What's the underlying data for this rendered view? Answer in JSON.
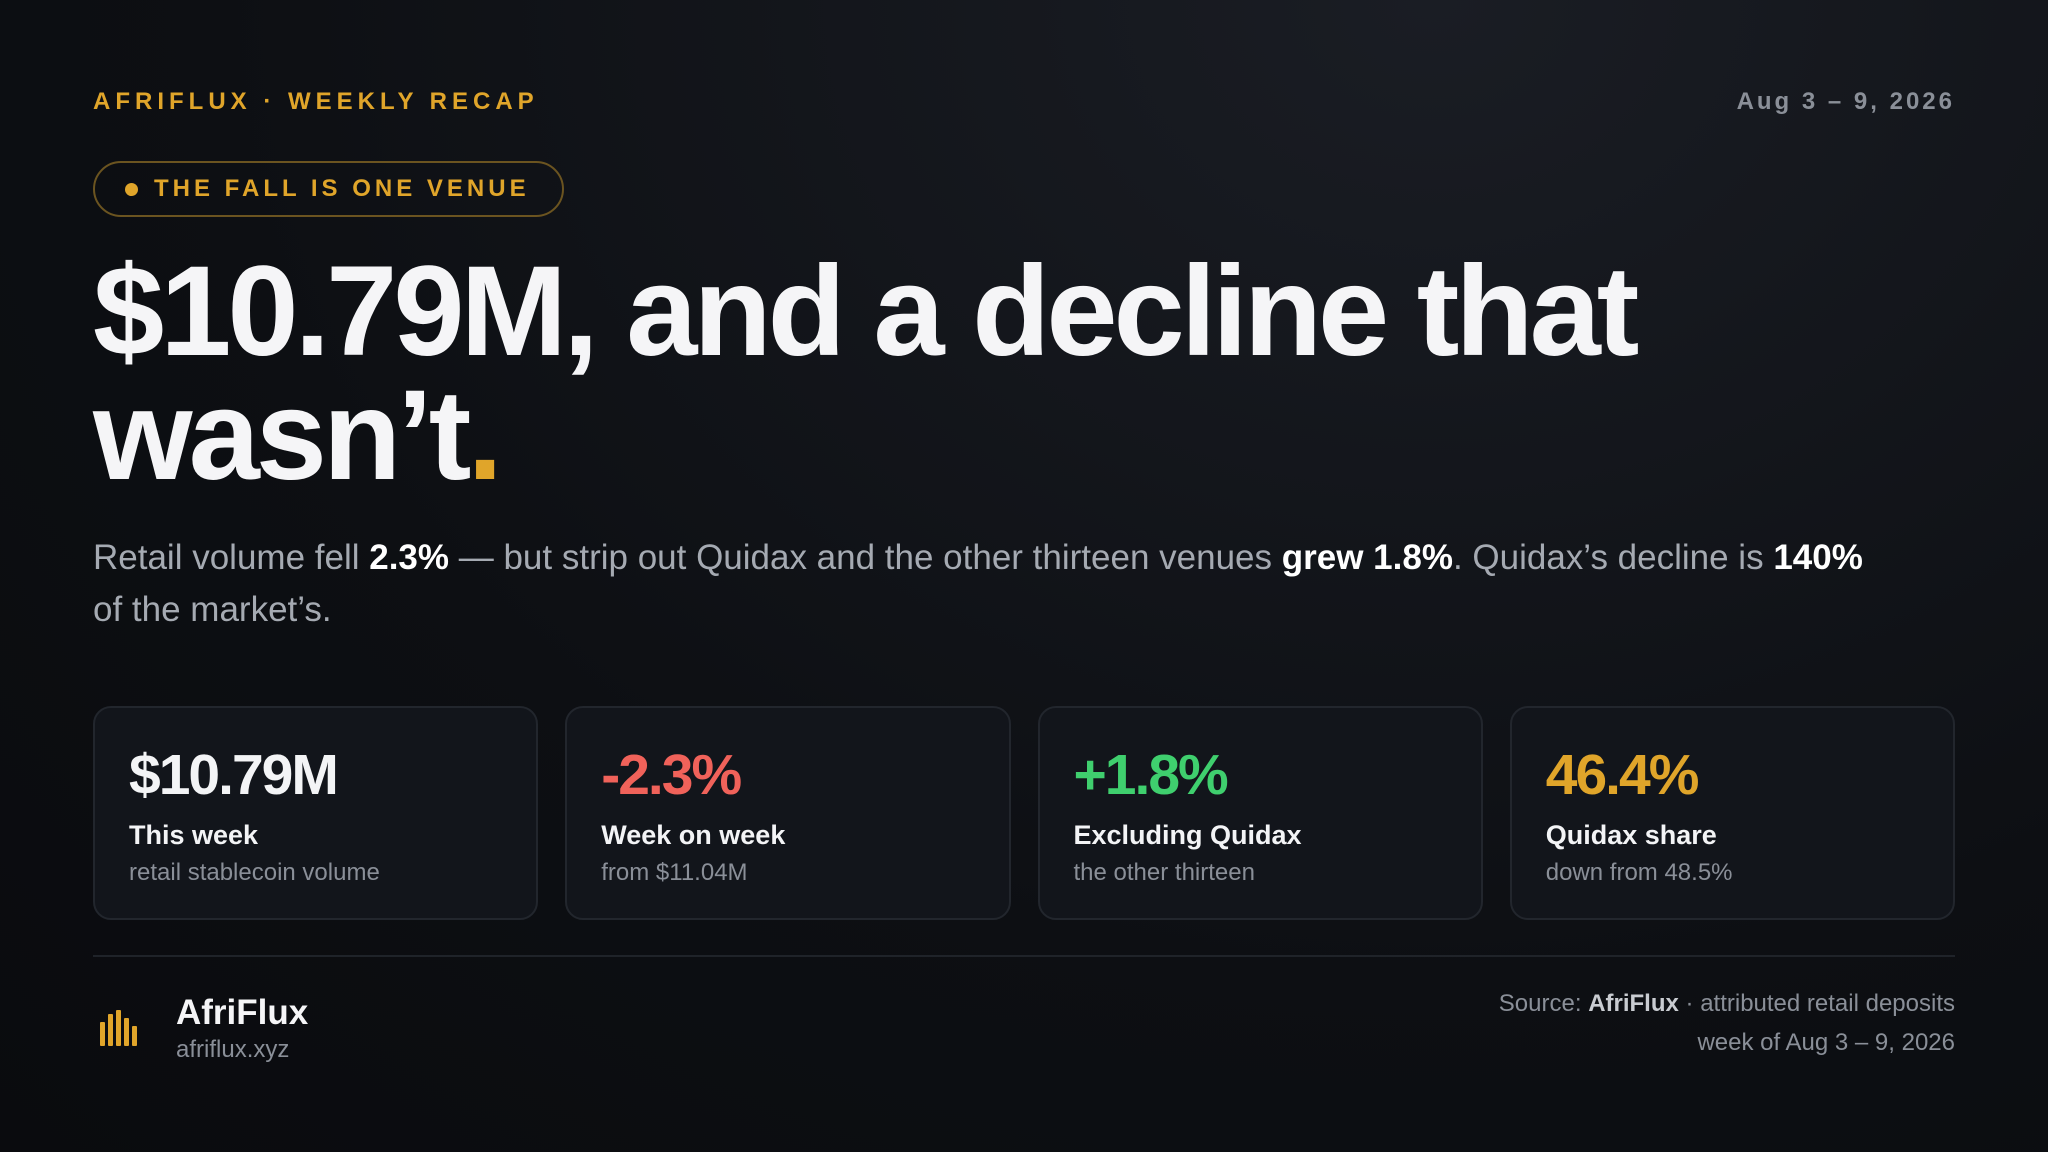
{
  "header": {
    "brand": "AFRIFLUX · WEEKLY RECAP",
    "date": "Aug 3 – 9, 2026"
  },
  "badge": "THE FALL IS ONE VENUE",
  "headline": {
    "text": "$10.79M, and a decline that wasn’t",
    "accent": "."
  },
  "subtitle": [
    {
      "text": "Retail volume fell ",
      "bold": false
    },
    {
      "text": "2.3%",
      "bold": true
    },
    {
      "text": " — but strip out Quidax and the other thirteen venues ",
      "bold": false
    },
    {
      "text": "grew 1.8%",
      "bold": true
    },
    {
      "text": ". Quidax’s decline is ",
      "bold": false
    },
    {
      "text": "140%",
      "bold": true
    },
    {
      "text": " of the market’s.",
      "bold": false
    }
  ],
  "cards": [
    {
      "value": "$10.79M",
      "label": "This week",
      "sub": "retail stablecoin volume",
      "color": "#f3f4f6"
    },
    {
      "value": "-2.3%",
      "label": "Week on week",
      "sub": "from $11.04M",
      "color": "#f0625a"
    },
    {
      "value": "+1.8%",
      "label": "Excluding Quidax",
      "sub": "the other thirteen",
      "color": "#3fcf6e"
    },
    {
      "value": "46.4%",
      "label": "Quidax share",
      "sub": "down from 48.5%",
      "color": "#e0a52a"
    }
  ],
  "footer": {
    "name": "AfriFlux",
    "url": "afriflux.xyz",
    "source": [
      {
        "text": "Source: ",
        "bold": false
      },
      {
        "text": "AfriFlux",
        "bold": true
      },
      {
        "text": " · attributed retail deposits",
        "bold": false
      }
    ],
    "period": "week of Aug 3 – 9, 2026"
  }
}
